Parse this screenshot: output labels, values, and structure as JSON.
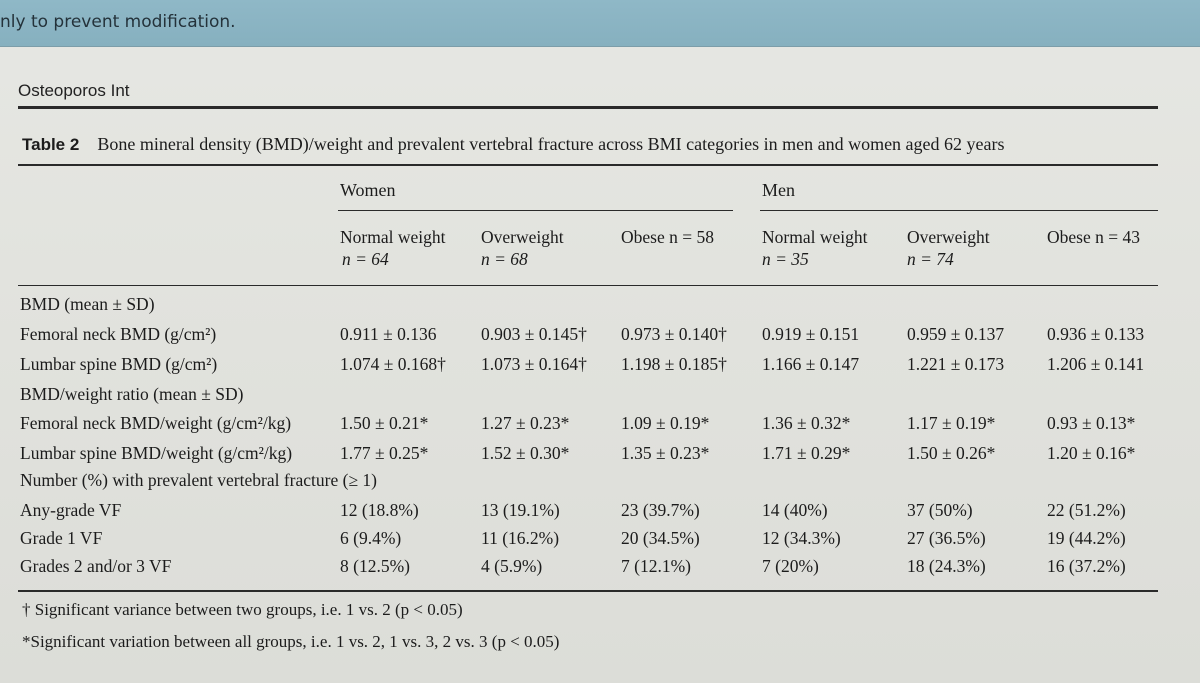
{
  "window": {
    "banner_text": "nly to prevent modification."
  },
  "journal": "Osteoporos Int",
  "table": {
    "label": "Table 2",
    "title": "Bone mineral density (BMD)/weight and prevalent vertebral fracture across BMI categories in men and women aged 62 years",
    "groups": [
      "Women",
      "Men"
    ],
    "columns": [
      {
        "line1": "Normal weight",
        "line2": "n = 64"
      },
      {
        "line1": "Overweight",
        "line2": "n = 68"
      },
      {
        "line1": "Obese n = 58",
        "line2": ""
      },
      {
        "line1": "Normal weight",
        "line2": "n = 35"
      },
      {
        "line1": "Overweight",
        "line2": "n = 74"
      },
      {
        "line1": "Obese n = 43",
        "line2": ""
      }
    ],
    "rows": [
      {
        "label": "BMD (mean ± SD)",
        "cells": [
          "",
          "",
          "",
          "",
          "",
          ""
        ]
      },
      {
        "label": "Femoral neck BMD (g/cm²)",
        "cells": [
          "0.911 ± 0.136",
          "0.903 ± 0.145†",
          "0.973 ± 0.140†",
          "0.919 ± 0.151",
          "0.959 ± 0.137",
          "0.936 ± 0.133"
        ]
      },
      {
        "label": "Lumbar spine BMD (g/cm²)",
        "cells": [
          "1.074 ± 0.168†",
          "1.073 ± 0.164†",
          "1.198 ± 0.185†",
          "1.166 ± 0.147",
          "1.221 ± 0.173",
          "1.206 ± 0.141"
        ]
      },
      {
        "label": "BMD/weight ratio (mean ± SD)",
        "cells": [
          "",
          "",
          "",
          "",
          "",
          ""
        ]
      },
      {
        "label": "Femoral neck BMD/weight (g/cm²/kg)",
        "cells": [
          "1.50 ± 0.21*",
          "1.27 ± 0.23*",
          "1.09 ± 0.19*",
          "1.36 ± 0.32*",
          "1.17 ± 0.19*",
          "0.93 ± 0.13*"
        ]
      },
      {
        "label": "Lumbar spine BMD/weight (g/cm²/kg)",
        "cells": [
          "1.77 ± 0.25*",
          "1.52 ± 0.30*",
          "1.35 ± 0.23*",
          "1.71 ± 0.29*",
          "1.50 ± 0.26*",
          "1.20 ± 0.16*"
        ]
      },
      {
        "label": "Number (%) with prevalent vertebral fracture (≥ 1)",
        "cells": [
          "",
          "",
          "",
          "",
          "",
          ""
        ]
      },
      {
        "label": "Any-grade VF",
        "cells": [
          "12 (18.8%)",
          "13 (19.1%)",
          "23 (39.7%)",
          "14 (40%)",
          "37 (50%)",
          "22 (51.2%)"
        ]
      },
      {
        "label": "Grade 1 VF",
        "cells": [
          "6 (9.4%)",
          "11 (16.2%)",
          "20 (34.5%)",
          "12 (34.3%)",
          "27 (36.5%)",
          "19 (44.2%)"
        ]
      },
      {
        "label": "Grades 2 and/or 3 VF",
        "cells": [
          "8 (12.5%)",
          "4 (5.9%)",
          "7 (12.1%)",
          "7 (20%)",
          "18 (24.3%)",
          "16 (37.2%)"
        ]
      }
    ],
    "footnotes": [
      "† Significant variance between two groups, i.e. 1 vs. 2 (p < 0.05)",
      "*Significant variation between all groups, i.e. 1 vs. 2, 1 vs. 3, 2 vs. 3 (p < 0.05)"
    ]
  }
}
